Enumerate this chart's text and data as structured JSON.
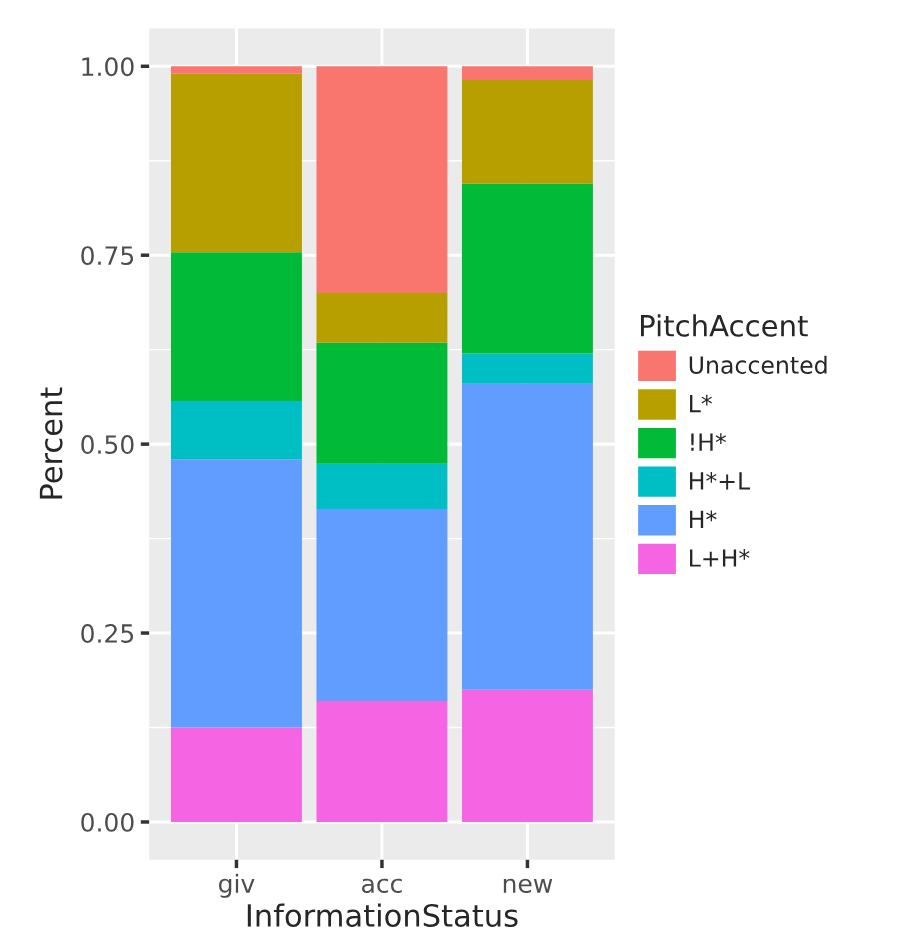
{
  "chart_data": {
    "type": "bar",
    "stacked": true,
    "xlabel": "InformationStatus",
    "ylabel": "Percent",
    "legend_title": "PitchAccent",
    "categories": [
      "giv",
      "acc",
      "new"
    ],
    "series": [
      {
        "name": "L+H*",
        "color": "#f564e3",
        "values": [
          0.125,
          0.16,
          0.175
        ]
      },
      {
        "name": "H*",
        "color": "#619cff",
        "values": [
          0.355,
          0.254,
          0.405
        ]
      },
      {
        "name": "H*+L",
        "color": "#00bfc4",
        "values": [
          0.077,
          0.06,
          0.04
        ]
      },
      {
        "name": "!H*",
        "color": "#00ba38",
        "values": [
          0.197,
          0.16,
          0.225
        ]
      },
      {
        "name": "L*",
        "color": "#b79f00",
        "values": [
          0.236,
          0.066,
          0.137
        ]
      },
      {
        "name": "Unaccented",
        "color": "#f8766d",
        "values": [
          0.01,
          0.3,
          0.018
        ]
      }
    ],
    "ylim": [
      -0.05,
      1.05
    ],
    "yticks": [
      {
        "value": 0,
        "label": "0.00"
      },
      {
        "value": 0.25,
        "label": "0.25"
      },
      {
        "value": 0.5,
        "label": "0.50"
      },
      {
        "value": 0.75,
        "label": "0.75"
      },
      {
        "value": 1,
        "label": "1.00"
      }
    ],
    "grid": true,
    "legend": "right"
  }
}
